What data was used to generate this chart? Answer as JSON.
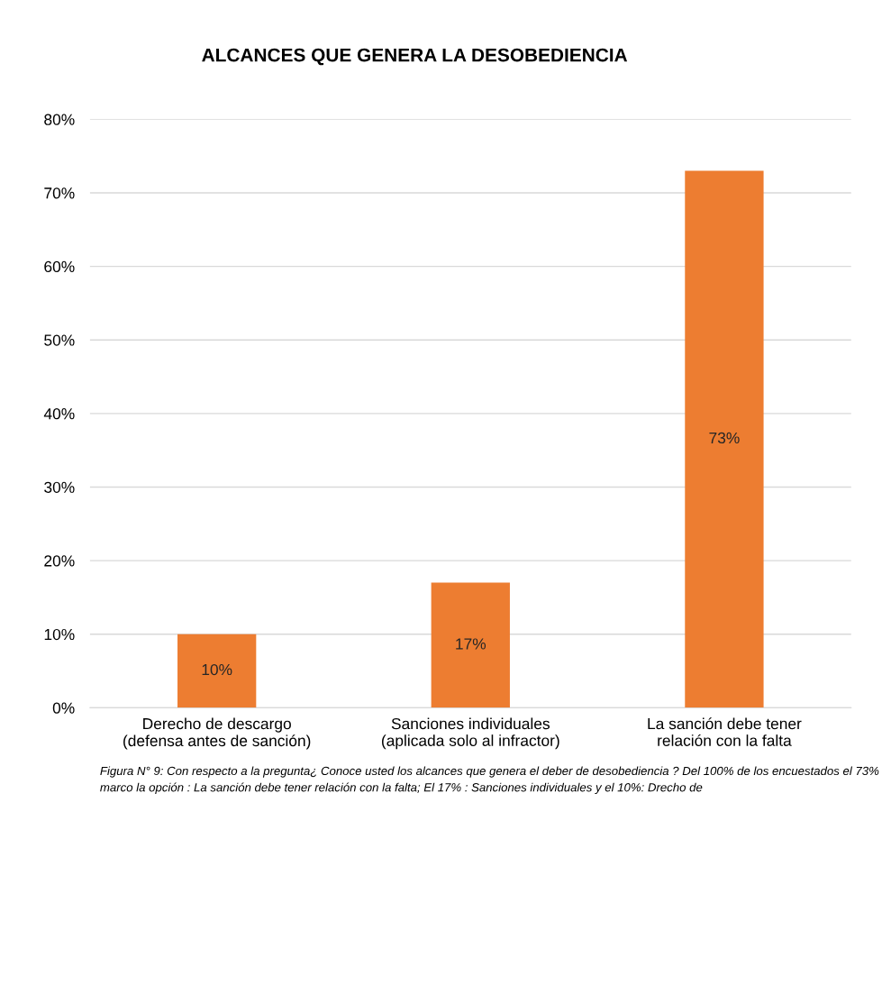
{
  "chart_data": {
    "type": "bar",
    "title": "ALCANCES QUE GENERA LA DESOBEDIENCIA",
    "categories": [
      "Derecho de descargo\n(defensa antes de sanción)",
      "Sanciones individuales\n(aplicada solo al infractor)",
      "La sanción debe tener\nrelación con la falta"
    ],
    "values": [
      10,
      17,
      73
    ],
    "color": "#ed7d31",
    "value_labels": [
      "10%",
      "17%",
      "73%"
    ],
    "ylim": [
      0,
      80
    ],
    "yticks": [
      {
        "value": 0,
        "label": "0%"
      },
      {
        "value": 10,
        "label": "10%"
      },
      {
        "value": 20,
        "label": "20%"
      },
      {
        "value": 30,
        "label": "30%"
      },
      {
        "value": 40,
        "label": "40%"
      },
      {
        "value": 50,
        "label": "50%"
      },
      {
        "value": 60,
        "label": "60%"
      },
      {
        "value": 70,
        "label": "70%"
      },
      {
        "value": 80,
        "label": "80%"
      }
    ],
    "grid": "y",
    "annotations": [
      "Figura N° 9: Con respecto a la pregunta¿ Conoce usted los alcances que genera el deber de desobediencia ? Del 100% de los encuestados el 73% marco la opción : La sanción debe tener relación con la falta; El 17% : Sanciones individuales y el 10%: Drecho de"
    ]
  }
}
